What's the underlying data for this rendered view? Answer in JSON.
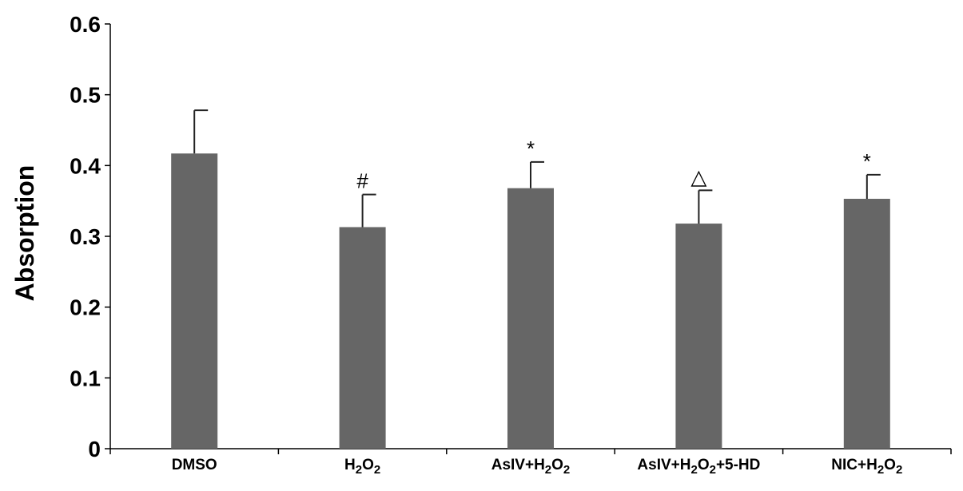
{
  "chart_data": {
    "type": "bar",
    "title": "",
    "xlabel": "",
    "ylabel": "Absorption",
    "ylim": [
      0,
      0.6
    ],
    "yticks": [
      "0",
      "0.1",
      "0.2",
      "0.3",
      "0.4",
      "0.5",
      "0.6"
    ],
    "grid": false,
    "bar_color": "#666666",
    "categories": [
      {
        "label": "DMSO",
        "parts": [
          {
            "t": "DMSO"
          }
        ]
      },
      {
        "label": "H2O2",
        "parts": [
          {
            "t": "H"
          },
          {
            "t": "2",
            "sub": true
          },
          {
            "t": "O"
          },
          {
            "t": "2",
            "sub": true
          }
        ]
      },
      {
        "label": "AsIV+H2O2",
        "parts": [
          {
            "t": "AsIV+H"
          },
          {
            "t": "2",
            "sub": true
          },
          {
            "t": "O"
          },
          {
            "t": "2",
            "sub": true
          }
        ]
      },
      {
        "label": "AsIV+H2O2+5-HD",
        "parts": [
          {
            "t": "AsIV+H"
          },
          {
            "t": "2",
            "sub": true
          },
          {
            "t": "O"
          },
          {
            "t": "2",
            "sub": true
          },
          {
            "t": "+5-HD"
          }
        ]
      },
      {
        "label": "NIC+H2O2",
        "parts": [
          {
            "t": "NIC+H"
          },
          {
            "t": "2",
            "sub": true
          },
          {
            "t": "O"
          },
          {
            "t": "2",
            "sub": true
          }
        ]
      }
    ],
    "values": [
      0.417,
      0.313,
      0.368,
      0.318,
      0.353
    ],
    "errors": [
      0.061,
      0.046,
      0.037,
      0.047,
      0.034
    ],
    "annotations": [
      "",
      "#",
      "*",
      "△",
      "*"
    ]
  }
}
